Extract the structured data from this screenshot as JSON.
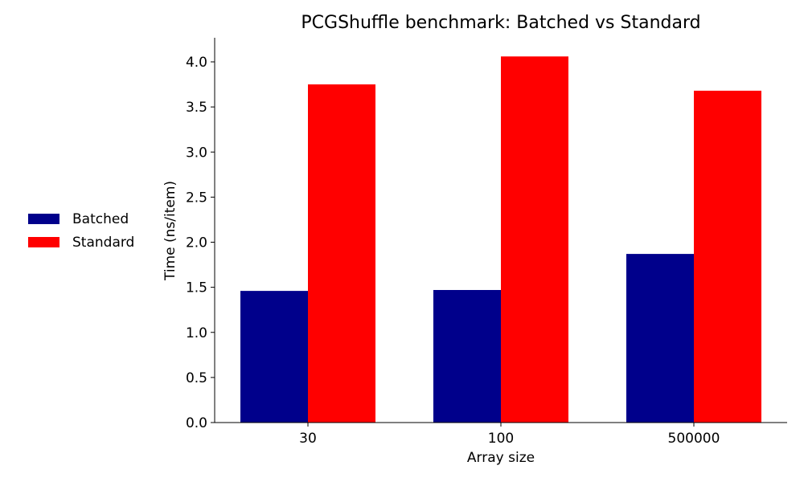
{
  "chart_data": {
    "type": "bar",
    "title": "PCGShuffle benchmark: Batched vs Standard",
    "xlabel": "Array size",
    "ylabel": "Time (ns/item)",
    "categories": [
      "30",
      "100",
      "500000"
    ],
    "series": [
      {
        "name": "Batched",
        "color": "#00008b",
        "values": [
          1.46,
          1.47,
          1.87
        ]
      },
      {
        "name": "Standard",
        "color": "#ff0000",
        "values": [
          3.75,
          4.06,
          3.68
        ]
      }
    ],
    "ylim": [
      0,
      4.26
    ],
    "yticks": [
      "0.0",
      "0.5",
      "1.0",
      "1.5",
      "2.0",
      "2.5",
      "3.0",
      "3.5",
      "4.0"
    ],
    "grid": false,
    "legend_position": "left"
  },
  "legend": {
    "items": [
      {
        "label": "Batched",
        "color": "#00008b"
      },
      {
        "label": "Standard",
        "color": "#ff0000"
      }
    ]
  }
}
